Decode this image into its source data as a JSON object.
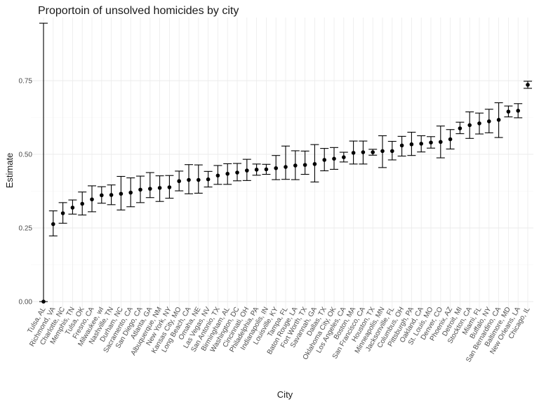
{
  "chart_data": {
    "type": "scatter",
    "title": "Proportoin of unsolved homicides by city",
    "xlabel": "City",
    "ylabel": "Estimate",
    "ylim": [
      0,
      0.95
    ],
    "yticks": [
      0.0,
      0.25,
      0.5,
      0.75
    ],
    "ytick_labels": [
      "0.00",
      "0.25",
      "0.50",
      "0.75"
    ],
    "grid": true,
    "colors": {
      "points": "#000000",
      "grid_major": "#ebebeb",
      "grid_minor": "#f5f5f5"
    },
    "categories": [
      "Tulsa, AL",
      "Richmond, VA",
      "Charlotte, NC",
      "Memphis, TN",
      "Tulsa, OK",
      "Fresno, CA",
      "Milwaukee, wI",
      "Nashville, TN",
      "Durham, NC",
      "Sacramento, CA",
      "San Diego, CA",
      "Atlanta, GA",
      "Albuquerque, NM",
      "New York, NY",
      "Kansas City, MO",
      "Long Beach, CA",
      "Omaha, NE",
      "Las Vegas, NV",
      "San Antonio, TX",
      "Birmingham, AL",
      "Washington, DC",
      "Cincinnati, OH",
      "Philadelphia, PA",
      "Indianapolis, IN",
      "Louisville, KY",
      "Tampa, FL",
      "Baton Rouge, LA",
      "Fort Worth, TX",
      "Savannah, GA",
      "Dallas, TX",
      "Oklahoma City, OK",
      "Los Angeles, CA",
      "Boston, MA",
      "San Francisco, CA",
      "Houston, TX",
      "Minneapolis, MN",
      "Jacksonville, FL",
      "Columbus, OH",
      "Pittsburgh, PA",
      "Oakland, CA",
      "St. Louis, MO",
      "Denver, CO",
      "Phoenix, AZ",
      "Detroit, MI",
      "Stockton, CA",
      "Miami, FL",
      "Buffalo, NY",
      "San Bernardino, CA",
      "Baltimore, MD",
      "New Orleans, LA",
      "Chicago, IL"
    ],
    "estimate": [
      0.0,
      0.263,
      0.3,
      0.319,
      0.332,
      0.347,
      0.361,
      0.362,
      0.366,
      0.37,
      0.38,
      0.383,
      0.386,
      0.388,
      0.409,
      0.413,
      0.413,
      0.415,
      0.428,
      0.434,
      0.438,
      0.445,
      0.448,
      0.449,
      0.453,
      0.457,
      0.462,
      0.464,
      0.467,
      0.481,
      0.485,
      0.49,
      0.505,
      0.507,
      0.507,
      0.511,
      0.511,
      0.53,
      0.534,
      0.536,
      0.54,
      0.542,
      0.551,
      0.588,
      0.599,
      0.605,
      0.612,
      0.617,
      0.645,
      0.648,
      0.736
    ],
    "conf_low": [
      0.0,
      0.223,
      0.266,
      0.297,
      0.294,
      0.305,
      0.334,
      0.329,
      0.311,
      0.322,
      0.336,
      0.353,
      0.34,
      0.351,
      0.376,
      0.366,
      0.368,
      0.389,
      0.398,
      0.398,
      0.41,
      0.411,
      0.429,
      0.432,
      0.414,
      0.415,
      0.414,
      0.432,
      0.406,
      0.444,
      0.449,
      0.474,
      0.467,
      0.467,
      0.497,
      0.455,
      0.481,
      0.494,
      0.496,
      0.508,
      0.521,
      0.488,
      0.518,
      0.57,
      0.554,
      0.569,
      0.573,
      0.557,
      0.627,
      0.624,
      0.724
    ],
    "conf_high": [
      0.945,
      0.308,
      0.336,
      0.345,
      0.372,
      0.393,
      0.39,
      0.396,
      0.425,
      0.42,
      0.426,
      0.438,
      0.427,
      0.428,
      0.443,
      0.465,
      0.464,
      0.442,
      0.462,
      0.468,
      0.469,
      0.483,
      0.467,
      0.466,
      0.496,
      0.528,
      0.512,
      0.511,
      0.533,
      0.52,
      0.523,
      0.507,
      0.545,
      0.545,
      0.517,
      0.563,
      0.544,
      0.561,
      0.575,
      0.563,
      0.56,
      0.596,
      0.584,
      0.609,
      0.644,
      0.64,
      0.653,
      0.675,
      0.664,
      0.672,
      0.748
    ]
  }
}
